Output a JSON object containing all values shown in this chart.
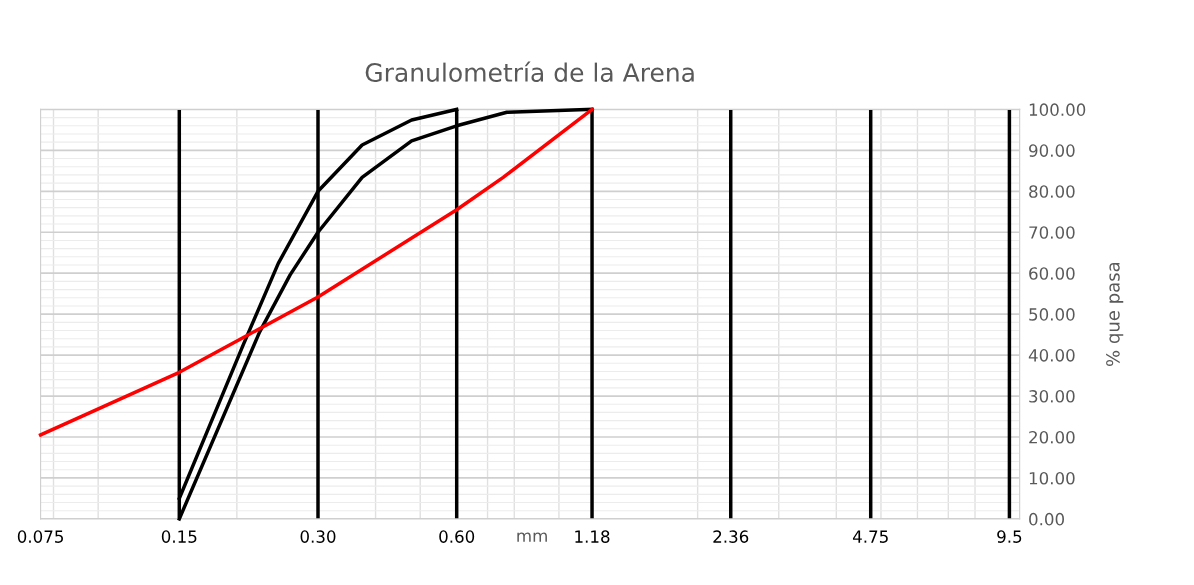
{
  "chart_data": {
    "type": "line",
    "title": "Granulometría de la Arena",
    "xlabel": null,
    "ylabel": "% que pasa",
    "annotations": [
      "mm"
    ],
    "log": "x",
    "xlim": [
      0.075,
      10
    ],
    "ylim": [
      0,
      100
    ],
    "xticks": [
      0.075,
      {
        "value": 0.15,
        "label": "0.15"
      },
      {
        "value": 0.3,
        "label": "0.30"
      },
      {
        "value": 0.6,
        "label": "0.60"
      },
      1.18,
      2.36,
      4.75,
      9.5
    ],
    "yticks": [
      {
        "value": 0,
        "label": "0.00"
      },
      {
        "value": 10,
        "label": "10.00"
      },
      {
        "value": 20,
        "label": "20.00"
      },
      {
        "value": 30,
        "label": "30.00"
      },
      {
        "value": 40,
        "label": "40.00"
      },
      {
        "value": 50,
        "label": "50.00"
      },
      {
        "value": 60,
        "label": "60.00"
      },
      {
        "value": 70,
        "label": "70.00"
      },
      {
        "value": 80,
        "label": "80.00"
      },
      {
        "value": 90,
        "label": "90.00"
      },
      {
        "value": 100,
        "label": "100.00"
      }
    ],
    "grid": true,
    "marker": "none",
    "line_style": "solid",
    "series": [
      {
        "color": "#000000",
        "x": [
          0.15,
          0.207,
          0.246,
          0.3,
          0.374,
          0.479,
          0.6
        ],
        "values": [
          5,
          42.8,
          62.4,
          80,
          91.3,
          97.4,
          100
        ]
      },
      {
        "color": "#000000",
        "x": [
          0.15,
          0.224,
          0.261,
          0.3,
          0.374,
          0.479,
          0.6,
          0.771,
          1.18
        ],
        "values": [
          0,
          45.6,
          59.6,
          70,
          83.4,
          92.3,
          96,
          99.3,
          100
        ]
      },
      {
        "color": "#ff0000",
        "x": [
          0.075,
          0.15,
          0.209,
          0.3,
          0.6,
          0.757,
          1.18
        ],
        "values": [
          20.5,
          35.8,
          44.6,
          54.2,
          75.5,
          83.4,
          100
        ]
      }
    ],
    "ref_lines": [
      {
        "axis": "x",
        "value": 0.15,
        "color": "#000000"
      },
      {
        "axis": "x",
        "value": 0.3,
        "color": "#000000"
      },
      {
        "axis": "x",
        "value": 0.6,
        "color": "#000000"
      },
      {
        "axis": "x",
        "value": 1.18,
        "color": "#000000"
      },
      {
        "axis": "x",
        "value": 2.36,
        "color": "#000000"
      },
      {
        "axis": "x",
        "value": 4.75,
        "color": "#000000"
      },
      {
        "axis": "x",
        "value": 9.5,
        "color": "#000000"
      }
    ]
  }
}
